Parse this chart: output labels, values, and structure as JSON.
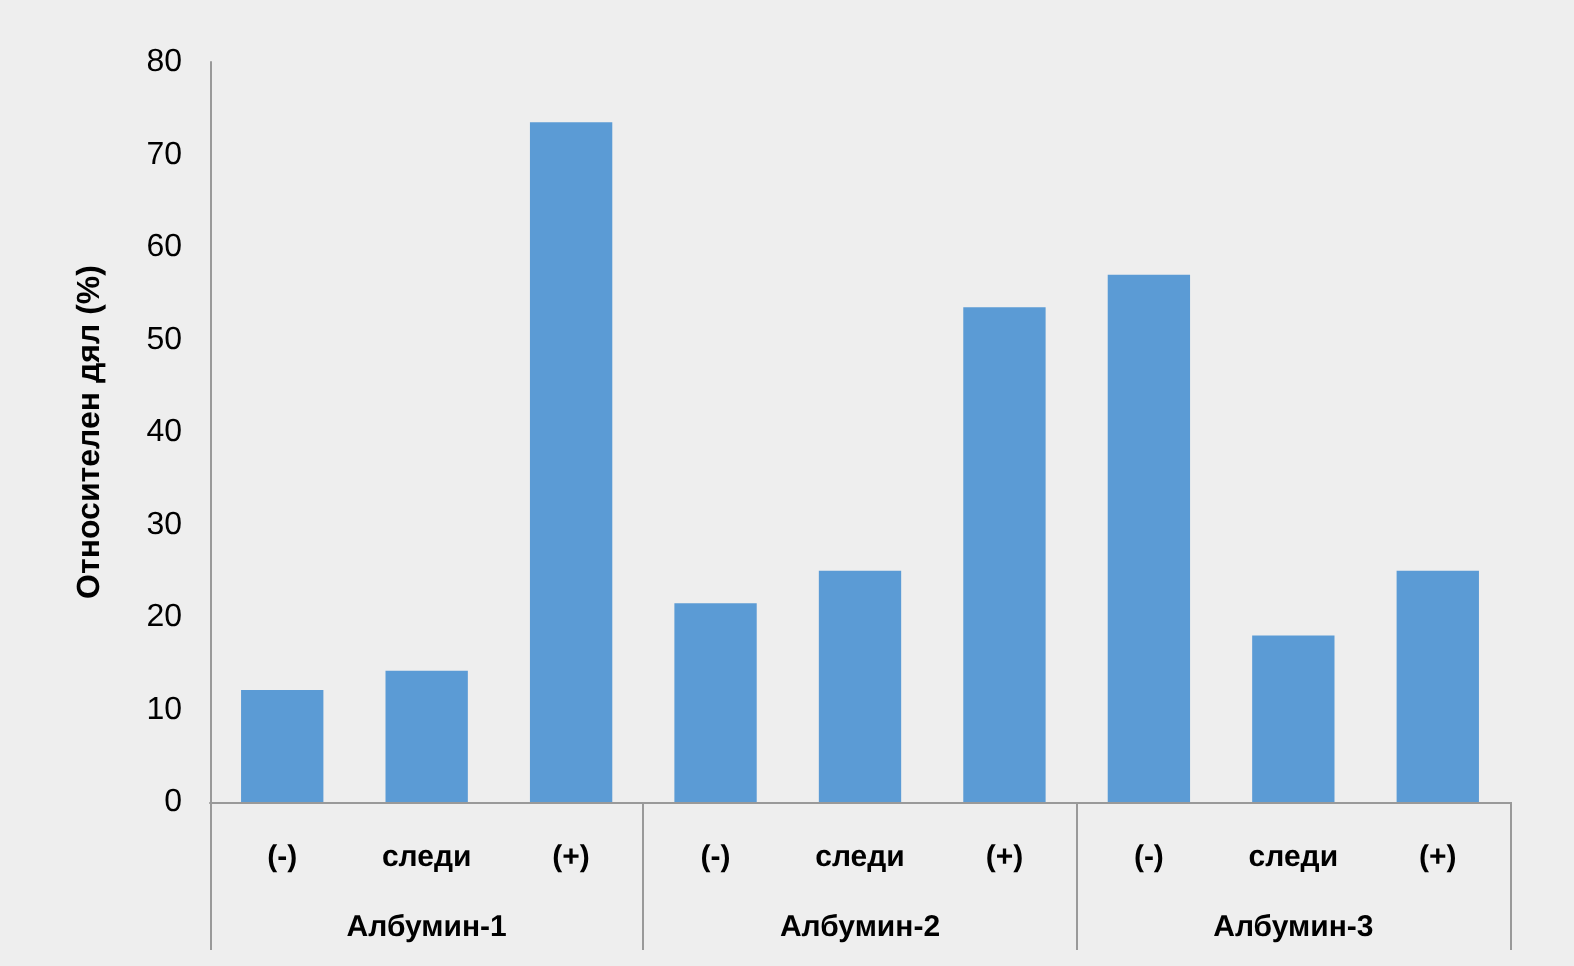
{
  "chart_data": {
    "type": "bar",
    "ylabel": "Относителен дял (%)",
    "categories": [
      "(-)",
      "следи",
      "(+)",
      "(-)",
      "следи",
      "(+)",
      "(-)",
      "следи",
      "(+)"
    ],
    "values": [
      12.1,
      14.2,
      73.5,
      21.5,
      25,
      53.5,
      57,
      18,
      25
    ],
    "color": "#5b9bd5",
    "annotations": [
      "Албумин-1",
      "Албумин-2",
      "Албумин-3"
    ],
    "ylim": [
      0,
      80
    ],
    "yticks": [
      0,
      10,
      20,
      30,
      40,
      50,
      60,
      70,
      80
    ],
    "grid": false
  }
}
